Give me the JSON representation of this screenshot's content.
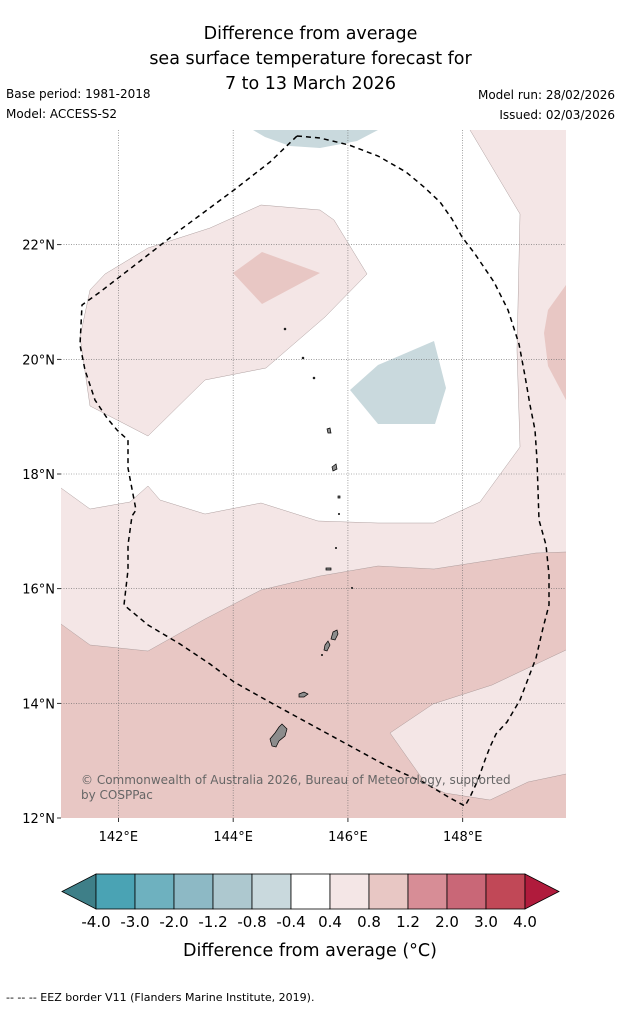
{
  "title": {
    "line1": "Difference from average",
    "line2": "sea surface temperature forecast for",
    "line3": "7 to 13 March 2026"
  },
  "meta": {
    "base_period": "Base period: 1981-2018",
    "model": "Model: ACCESS-S2",
    "model_run": "Model run: 28/02/2026",
    "issued": "Issued: 02/03/2026"
  },
  "map": {
    "lon_range": [
      141,
      149.8
    ],
    "lat_range": [
      12,
      24
    ],
    "lon_ticks": [
      {
        "value": 142,
        "label": "142°E"
      },
      {
        "value": 144,
        "label": "144°E"
      },
      {
        "value": 146,
        "label": "146°E"
      },
      {
        "value": 148,
        "label": "148°E"
      }
    ],
    "lat_ticks": [
      {
        "value": 22,
        "label": "22°N"
      },
      {
        "value": 20,
        "label": "20°N"
      },
      {
        "value": 18,
        "label": "18°N"
      },
      {
        "value": 16,
        "label": "16°N"
      },
      {
        "value": 14,
        "label": "14°N"
      },
      {
        "value": 12,
        "label": "12°N"
      }
    ],
    "copyright": "© Commonwealth of Australia 2026, Bureau of Meteorology, supported by COSPPac"
  },
  "colors": {
    "below_min": "#3e7f88",
    "bins": [
      "#4aa3b4",
      "#6eb1bf",
      "#8db9c5",
      "#adc8cf",
      "#c9d9dd",
      "#ffffff",
      "#f4e6e6",
      "#e8c7c4",
      "#d78d96",
      "#c96777",
      "#c14857"
    ],
    "above_max": "#b01b3c",
    "land": "#8c8c8c",
    "eez_line": "#000000",
    "grid": "#666666"
  },
  "legend": {
    "tick_labels": [
      "-4.0",
      "-3.0",
      "-2.0",
      "-1.2",
      "-0.8",
      "-0.4",
      "0.4",
      "0.8",
      "1.2",
      "2.0",
      "3.0",
      "4.0"
    ],
    "title": "Difference from average (°C)"
  },
  "footer": {
    "eez_note": "--  --  -- EEZ border V11 (Flanders Marine Institute, 2019)."
  }
}
